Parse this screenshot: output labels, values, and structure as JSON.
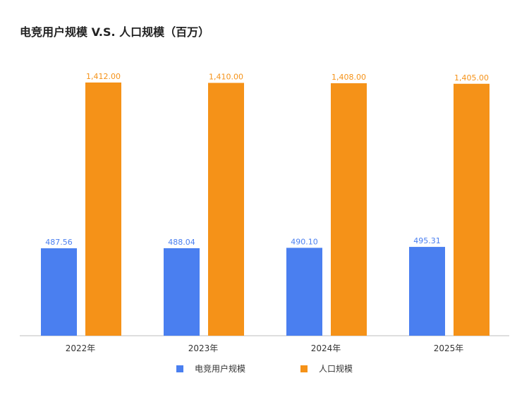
{
  "chart_data": {
    "type": "bar",
    "title": "电竞用户规模 V.S. 人口规模（百万）",
    "categories": [
      "2022年",
      "2023年",
      "2024年",
      "2025年"
    ],
    "series": [
      {
        "name": "电竞用户规模",
        "color": "#4a7ff0",
        "values": [
          487.56,
          488.04,
          490.1,
          495.31
        ],
        "labels": [
          "487.56",
          "488.04",
          "490.10",
          "495.31"
        ]
      },
      {
        "name": "人口规模",
        "color": "#f59218",
        "values": [
          1412.0,
          1410.0,
          1408.0,
          1405.0
        ],
        "labels": [
          "1,412.00",
          "1,410.00",
          "1,408.00",
          "1,405.00"
        ]
      }
    ],
    "ylim": [
      0,
      1412
    ],
    "grid": false,
    "legend_position": "bottom"
  }
}
